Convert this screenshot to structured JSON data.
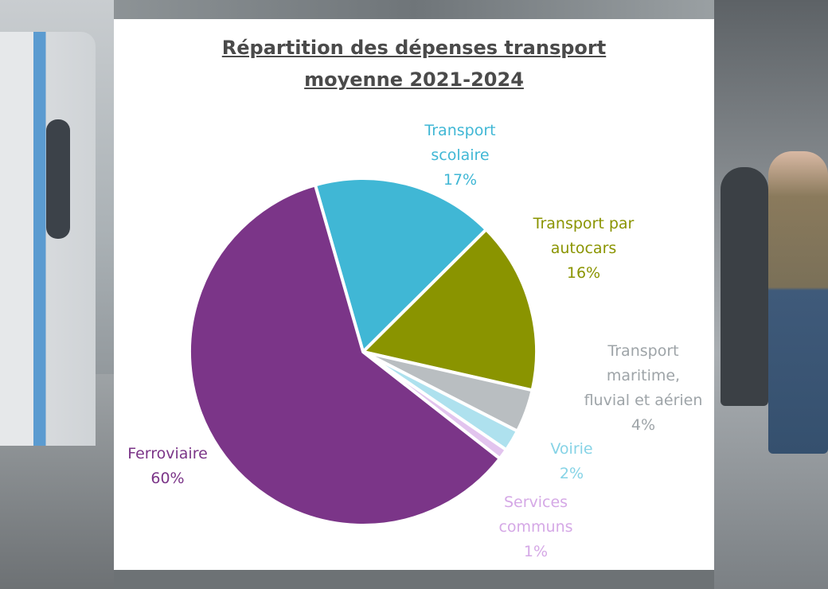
{
  "chart_data": {
    "type": "pie",
    "title_lines": [
      "Répartition des dépenses transport",
      "moyenne 2021-2024"
    ],
    "slices": [
      {
        "label_lines": [
          "Transport",
          "scolaire"
        ],
        "value": 17,
        "value_label": "17%",
        "color": "#40B7D5"
      },
      {
        "label_lines": [
          "Transport par",
          "autocars"
        ],
        "value": 16,
        "value_label": "16%",
        "color": "#8A9400"
      },
      {
        "label_lines": [
          "Transport",
          "maritime,",
          "fluvial et aérien"
        ],
        "value": 4,
        "value_label": "4%",
        "color": "#B9BEC1"
      },
      {
        "label_lines": [
          "Voirie"
        ],
        "value": 2,
        "value_label": "2%",
        "color": "#AEE1EE"
      },
      {
        "label_lines": [
          "Services",
          "communs"
        ],
        "value": 1,
        "value_label": "1%",
        "color": "#E2C4EE"
      },
      {
        "label_lines": [
          "Ferroviaire"
        ],
        "value": 60,
        "value_label": "60%",
        "color": "#7B3588"
      }
    ],
    "label_colors": [
      "#40B7D5",
      "#8A9400",
      "#9EA4A8",
      "#86D3E6",
      "#D5A8E6",
      "#7B3588"
    ],
    "legend": "none"
  }
}
